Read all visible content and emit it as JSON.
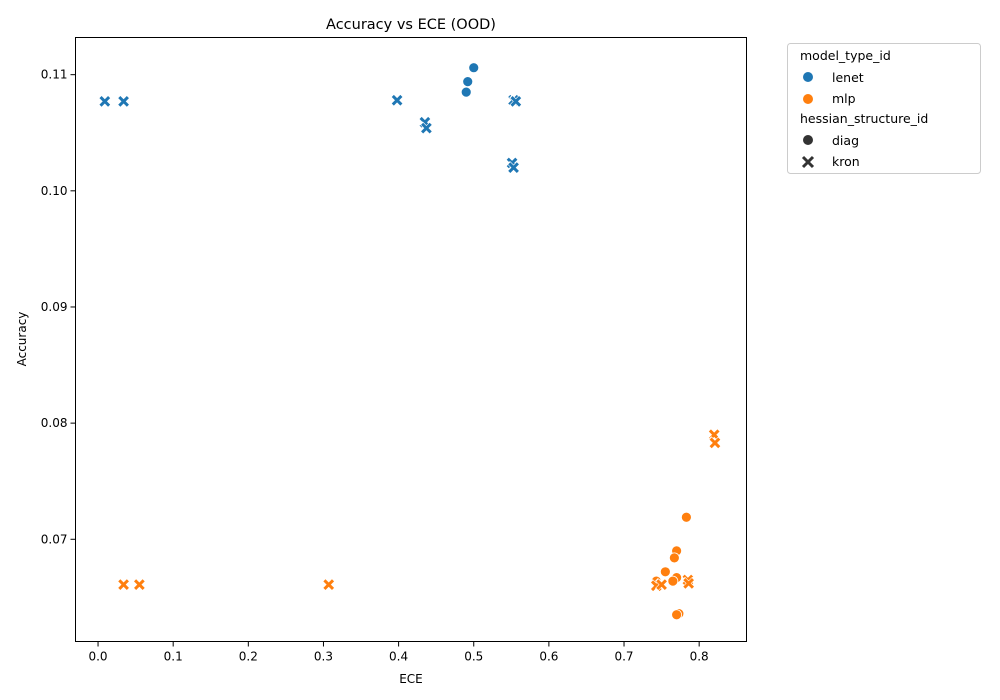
{
  "chart_data": {
    "type": "scatter",
    "title": "Accuracy vs ECE (OOD)",
    "xlabel": "ECE",
    "ylabel": "Accuracy",
    "xlim": [
      -0.03,
      0.863
    ],
    "ylim": [
      0.0612,
      0.1132
    ],
    "xticks": [
      0.0,
      0.1,
      0.2,
      0.3,
      0.4,
      0.5,
      0.6,
      0.7,
      0.8
    ],
    "xtick_labels": [
      "0.0",
      "0.1",
      "0.2",
      "0.3",
      "0.4",
      "0.5",
      "0.6",
      "0.7",
      "0.8"
    ],
    "yticks": [
      0.07,
      0.08,
      0.09,
      0.1,
      0.11
    ],
    "ytick_labels": [
      "0.07",
      "0.08",
      "0.09",
      "0.10",
      "0.11"
    ],
    "grid": false,
    "legend_placement": "outside-upper-right",
    "legend": {
      "hue_title": "model_type_id",
      "style_title": "hessian_structure_id",
      "hue_entries": [
        {
          "label": "lenet",
          "color": "#1f77b4"
        },
        {
          "label": "mlp",
          "color": "#ff7f0e"
        }
      ],
      "style_entries": [
        {
          "label": "diag",
          "marker": "circle"
        },
        {
          "label": "kron",
          "marker": "x"
        }
      ]
    },
    "series": [
      {
        "model": "lenet",
        "structure": "diag",
        "color": "#1f77b4",
        "marker": "circle",
        "points": [
          [
            0.5,
            0.1106
          ],
          [
            0.492,
            0.1094
          ],
          [
            0.49,
            0.1085
          ]
        ]
      },
      {
        "model": "lenet",
        "structure": "kron",
        "color": "#1f77b4",
        "marker": "x",
        "points": [
          [
            0.009,
            0.1077
          ],
          [
            0.034,
            0.1077
          ],
          [
            0.398,
            0.1078
          ],
          [
            0.435,
            0.1059
          ],
          [
            0.437,
            0.1054
          ],
          [
            0.551,
            0.1024
          ],
          [
            0.553,
            0.102
          ],
          [
            0.553,
            0.1078
          ],
          [
            0.556,
            0.1077
          ]
        ]
      },
      {
        "model": "mlp",
        "structure": "diag",
        "color": "#ff7f0e",
        "marker": "circle",
        "points": [
          [
            0.783,
            0.0719
          ],
          [
            0.77,
            0.069
          ],
          [
            0.767,
            0.0684
          ],
          [
            0.755,
            0.0672
          ],
          [
            0.77,
            0.0667
          ],
          [
            0.765,
            0.0664
          ],
          [
            0.743,
            0.0664
          ],
          [
            0.773,
            0.0636
          ],
          [
            0.77,
            0.0635
          ]
        ]
      },
      {
        "model": "mlp",
        "structure": "kron",
        "color": "#ff7f0e",
        "marker": "x",
        "points": [
          [
            0.82,
            0.079
          ],
          [
            0.821,
            0.0783
          ],
          [
            0.034,
            0.0661
          ],
          [
            0.055,
            0.0661
          ],
          [
            0.307,
            0.0661
          ],
          [
            0.743,
            0.066
          ],
          [
            0.75,
            0.0661
          ],
          [
            0.785,
            0.0665
          ],
          [
            0.786,
            0.0662
          ]
        ]
      }
    ]
  }
}
